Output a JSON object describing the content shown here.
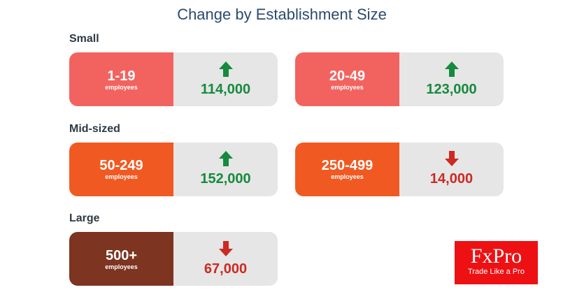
{
  "title": "Change by Establishment Size",
  "colors": {
    "small": "#f2635f",
    "mid": "#f05a22",
    "large": "#7d3420",
    "up": "#168a3e",
    "down": "#cc2a22",
    "panel": "#e6e6e6"
  },
  "sections": [
    {
      "label": "Small",
      "cards": [
        {
          "range": "1-19",
          "unit": "employees",
          "value": "114,000",
          "direction": "up"
        },
        {
          "range": "20-49",
          "unit": "employees",
          "value": "123,000",
          "direction": "up"
        }
      ]
    },
    {
      "label": "Mid-sized",
      "cards": [
        {
          "range": "50-249",
          "unit": "employees",
          "value": "152,000",
          "direction": "up"
        },
        {
          "range": "250-499",
          "unit": "employees",
          "value": "14,000",
          "direction": "down"
        }
      ]
    },
    {
      "label": "Large",
      "cards": [
        {
          "range": "500+",
          "unit": "employees",
          "value": "67,000",
          "direction": "down"
        }
      ]
    }
  ],
  "logo": {
    "name": "FxPro",
    "tagline": "Trade Like a Pro"
  }
}
